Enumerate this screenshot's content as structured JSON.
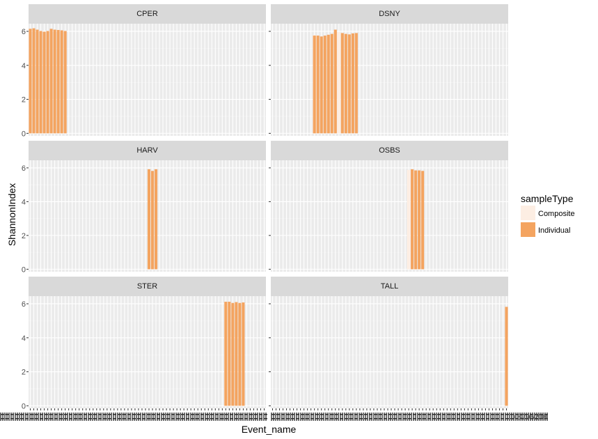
{
  "chart_data": {
    "type": "bar",
    "layout": "facet_wrap 3 rows x 2 columns",
    "xlabel": "Event_name",
    "ylabel": "ShannonIndex",
    "ylim": [
      -0.15,
      6.45
    ],
    "yticks": [
      0,
      2,
      4,
      6
    ],
    "n_x_categories": 68,
    "x_tick_labels_overplotted": true,
    "x_tick_label_fragment": "0.8796208",
    "legend": {
      "title": "sampleType",
      "position": "right",
      "entries": [
        {
          "name": "Composite",
          "color": "#fdeee3"
        },
        {
          "name": "Individual",
          "color": "#f4a460"
        }
      ]
    },
    "facets": [
      {
        "name": "CPER",
        "bars": [
          {
            "pos": 1,
            "value": 6.15,
            "type": "Individual"
          },
          {
            "pos": 2,
            "value": 6.18,
            "type": "Individual"
          },
          {
            "pos": 3,
            "value": 6.1,
            "type": "Individual"
          },
          {
            "pos": 4,
            "value": 6.02,
            "type": "Individual"
          },
          {
            "pos": 5,
            "value": 5.98,
            "type": "Individual"
          },
          {
            "pos": 6,
            "value": 6.02,
            "type": "Individual"
          },
          {
            "pos": 7,
            "value": 6.15,
            "type": "Individual"
          },
          {
            "pos": 8,
            "value": 6.1,
            "type": "Individual"
          },
          {
            "pos": 9,
            "value": 6.08,
            "type": "Individual"
          },
          {
            "pos": 10,
            "value": 6.06,
            "type": "Individual"
          },
          {
            "pos": 11,
            "value": 6.02,
            "type": "Individual"
          }
        ]
      },
      {
        "name": "DSNY",
        "bars": [
          {
            "pos": 13,
            "value": 5.78,
            "type": "Composite"
          },
          {
            "pos": 13,
            "value": 5.75,
            "type": "Individual"
          },
          {
            "pos": 14,
            "value": 5.75,
            "type": "Individual"
          },
          {
            "pos": 15,
            "value": 5.7,
            "type": "Individual"
          },
          {
            "pos": 16,
            "value": 5.75,
            "type": "Individual"
          },
          {
            "pos": 17,
            "value": 5.8,
            "type": "Individual"
          },
          {
            "pos": 18,
            "value": 5.85,
            "type": "Individual"
          },
          {
            "pos": 19,
            "value": 6.1,
            "type": "Individual"
          },
          {
            "pos": 20,
            "value": 5.95,
            "type": "Composite"
          },
          {
            "pos": 21,
            "value": 5.9,
            "type": "Individual"
          },
          {
            "pos": 22,
            "value": 5.85,
            "type": "Individual"
          },
          {
            "pos": 23,
            "value": 5.82,
            "type": "Individual"
          },
          {
            "pos": 24,
            "value": 5.88,
            "type": "Individual"
          },
          {
            "pos": 25,
            "value": 5.9,
            "type": "Individual"
          }
        ]
      },
      {
        "name": "HARV",
        "bars": [
          {
            "pos": 35,
            "value": 5.92,
            "type": "Individual"
          },
          {
            "pos": 36,
            "value": 5.82,
            "type": "Individual"
          },
          {
            "pos": 37,
            "value": 5.92,
            "type": "Individual"
          }
        ]
      },
      {
        "name": "OSBS",
        "bars": [
          {
            "pos": 40,
            "value": 5.88,
            "type": "Composite"
          },
          {
            "pos": 41,
            "value": 5.92,
            "type": "Individual"
          },
          {
            "pos": 42,
            "value": 5.85,
            "type": "Individual"
          },
          {
            "pos": 43,
            "value": 5.85,
            "type": "Individual"
          },
          {
            "pos": 44,
            "value": 5.82,
            "type": "Individual"
          }
        ]
      },
      {
        "name": "STER",
        "bars": [
          {
            "pos": 57,
            "value": 6.1,
            "type": "Composite"
          },
          {
            "pos": 57,
            "value": 6.12,
            "type": "Individual"
          },
          {
            "pos": 58,
            "value": 6.12,
            "type": "Individual"
          },
          {
            "pos": 59,
            "value": 6.05,
            "type": "Individual"
          },
          {
            "pos": 60,
            "value": 6.1,
            "type": "Individual"
          },
          {
            "pos": 61,
            "value": 6.05,
            "type": "Individual"
          },
          {
            "pos": 62,
            "value": 6.08,
            "type": "Individual"
          }
        ]
      },
      {
        "name": "TALL",
        "bars": [
          {
            "pos": 68,
            "value": 5.82,
            "type": "Individual"
          }
        ]
      }
    ]
  }
}
